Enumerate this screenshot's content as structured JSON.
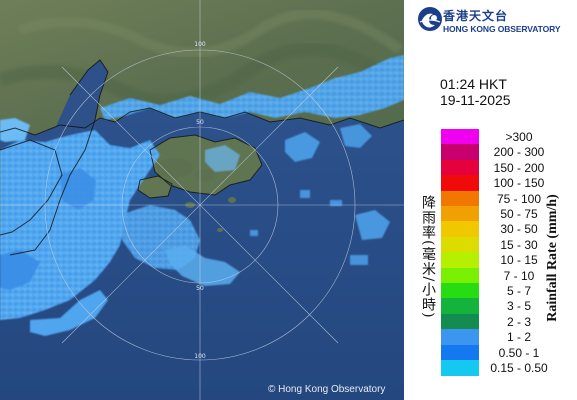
{
  "brand": {
    "name_cn": "香港天文台",
    "name_en": "HONG KONG OBSERVATORY"
  },
  "timestamp": {
    "time": "01:24 HKT",
    "date": "19-11-2025"
  },
  "copyright": "© Hong Kong Observatory",
  "range_ring_labels": [
    "100",
    "50",
    "50",
    "100"
  ],
  "legend": {
    "title_cn": "降雨率(毫米/小時)",
    "title_en": "Rainfall Rate (mm/h)",
    "items": [
      {
        "label": ">300",
        "color": "#f000f0"
      },
      {
        "label": "200 - 300",
        "color": "#c8006e"
      },
      {
        "label": "150 - 200",
        "color": "#e6003c"
      },
      {
        "label": "100 - 150",
        "color": "#f00a0a"
      },
      {
        "label": "75 - 100",
        "color": "#f07800"
      },
      {
        "label": "50 - 75",
        "color": "#f0a000"
      },
      {
        "label": "30 - 50",
        "color": "#f0c800"
      },
      {
        "label": "15 - 30",
        "color": "#dcdc00"
      },
      {
        "label": "10 - 15",
        "color": "#b4f000"
      },
      {
        "label": "7 - 10",
        "color": "#78f000"
      },
      {
        "label": "5 - 7",
        "color": "#28dc14"
      },
      {
        "label": "3 - 5",
        "color": "#14b43c"
      },
      {
        "label": "2 - 3",
        "color": "#148c50"
      },
      {
        "label": "1 - 2",
        "color": "#3c96f0"
      },
      {
        "label": "0.50 - 1",
        "color": "#1478f0"
      },
      {
        "label": "0.15 - 0.50",
        "color": "#14c8f0"
      }
    ]
  }
}
